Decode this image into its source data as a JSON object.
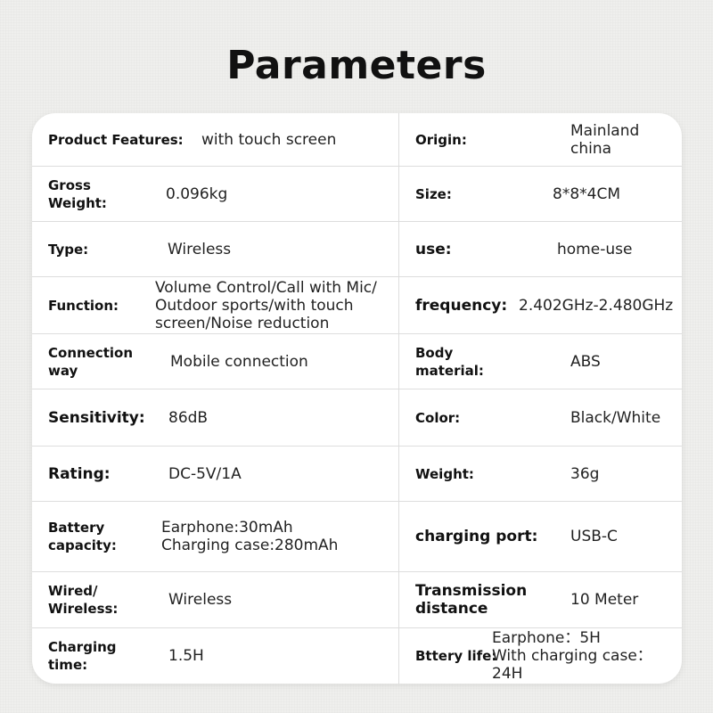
{
  "title": "Parameters",
  "rows": [
    {
      "left": {
        "label": "Product Features:",
        "value": "with touch screen"
      },
      "right": {
        "label": "Origin:",
        "value": "Mainland\nchina"
      }
    },
    {
      "left": {
        "label": "Gross\nWeight:",
        "value": "0.096kg"
      },
      "right": {
        "label": "Size:",
        "value": "8*8*4CM"
      }
    },
    {
      "left": {
        "label": "Type:",
        "value": "Wireless"
      },
      "right": {
        "label": "use:",
        "value": "home-use"
      }
    },
    {
      "left": {
        "label": "Function:",
        "value": "Volume Control/Call with Mic/\nOutdoor sports/with touch\nscreen/Noise reduction"
      },
      "right": {
        "label": "frequency:",
        "value": "2.402GHz-2.480GHz"
      }
    },
    {
      "left": {
        "label": "Connection\nway",
        "value": "Mobile connection"
      },
      "right": {
        "label": "Body\nmaterial:",
        "value": "ABS"
      }
    },
    {
      "left": {
        "label": "Sensitivity:",
        "value": "86dB"
      },
      "right": {
        "label": "Color:",
        "value": "Black/White"
      }
    },
    {
      "left": {
        "label": "Rating:",
        "value": "DC-5V/1A"
      },
      "right": {
        "label": "Weight:",
        "value": "36g"
      }
    },
    {
      "left": {
        "label": "Battery\ncapacity:",
        "value": "Earphone:30mAh\nCharging case:280mAh"
      },
      "right": {
        "label": "charging port:",
        "value": "USB-C"
      }
    },
    {
      "left": {
        "label": "Wired/\nWireless:",
        "value": "Wireless"
      },
      "right": {
        "label": "Transmission\ndistance",
        "value": "10 Meter"
      }
    },
    {
      "left": {
        "label": "Charging\ntime:",
        "value": "1.5H"
      },
      "right": {
        "label": "Bttery life:",
        "value": "Earphone：5H\nWith charging case：24H"
      }
    }
  ]
}
